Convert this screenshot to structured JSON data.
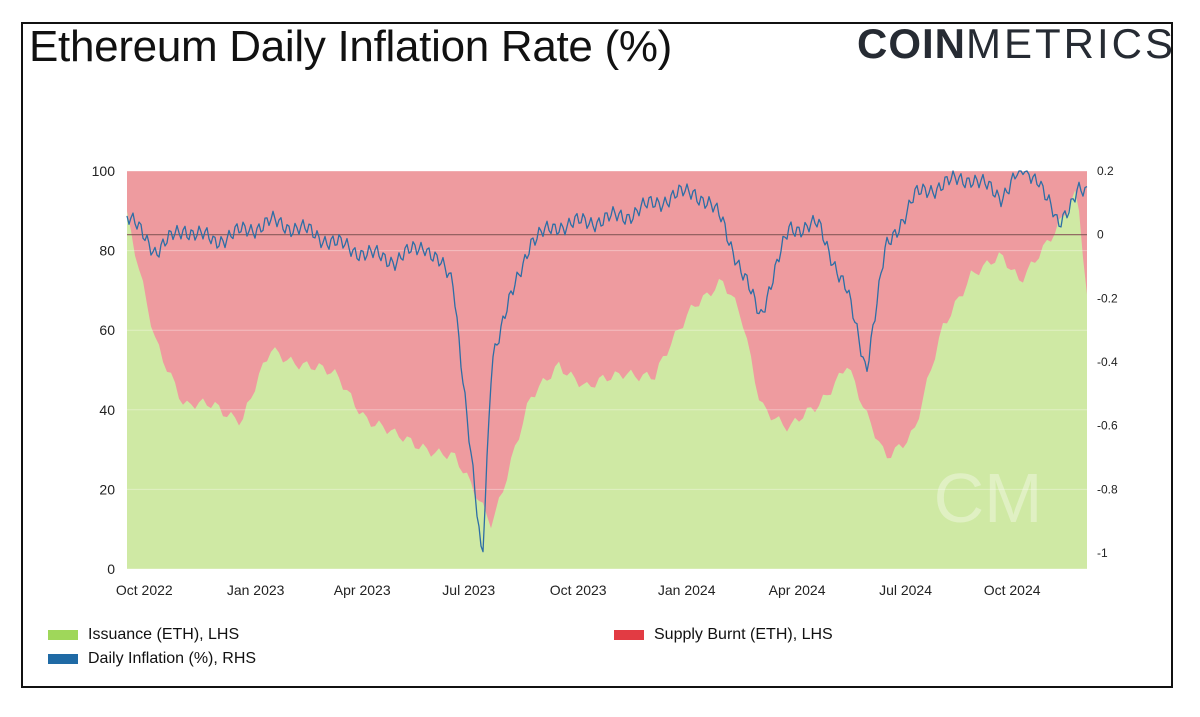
{
  "title": "Ethereum Daily Inflation Rate (%)",
  "logo": {
    "bold": "COIN",
    "light": "METRICS"
  },
  "colors": {
    "issuance": "#cfe9a4",
    "burnt": "#ee9b9f",
    "inflation": "#2d6ea6",
    "zero_line": "#8a5a5a",
    "legend_issuance": "#9fd75a",
    "legend_burnt": "#e23b43",
    "legend_inflation": "#1f6aa5"
  },
  "legend": {
    "issuance": "Issuance (ETH), LHS",
    "burnt": "Supply Burnt (ETH), LHS",
    "inflation": "Daily Inflation (%), RHS"
  },
  "watermark": "CM",
  "chart_data": {
    "type": "area",
    "title": "Ethereum Daily Inflation Rate (%)",
    "x_ticks": [
      "Oct 2022",
      "Jan 2023",
      "Apr 2023",
      "Jul 2023",
      "Oct 2023",
      "Jan 2024",
      "Apr 2024",
      "Jul 2024",
      "Oct 2024"
    ],
    "y_left": {
      "ylim": [
        0,
        100
      ],
      "ticks": [
        0,
        20,
        40,
        60,
        80,
        100
      ]
    },
    "y_right": {
      "ylim": [
        -1.05,
        0.2
      ],
      "ticks": [
        "-1",
        "-0.8",
        "-0.6",
        "-0.4",
        "-0.2",
        "0",
        "0.2"
      ]
    },
    "series": [
      {
        "name": "Issuance (ETH), LHS",
        "axis": "left",
        "kind": "stacked-area-bottom",
        "x": [
          0,
          0.03,
          0.06,
          0.09,
          0.12,
          0.15,
          0.18,
          0.22,
          0.25,
          0.28,
          0.31,
          0.34,
          0.38,
          0.42,
          0.45,
          0.48,
          0.52,
          0.55,
          0.59,
          0.62,
          0.64,
          0.66,
          0.69,
          0.72,
          0.75,
          0.77,
          0.79,
          0.82,
          0.85,
          0.88,
          0.91,
          0.93,
          0.95,
          0.97,
          0.99,
          1.0
        ],
        "values": [
          88,
          58,
          40,
          42,
          37,
          55,
          52,
          48,
          38,
          33,
          31,
          28,
          12,
          42,
          52,
          45,
          50,
          48,
          67,
          72,
          63,
          42,
          35,
          41,
          52,
          38,
          28,
          35,
          60,
          75,
          78,
          72,
          80,
          86,
          94,
          68
        ]
      },
      {
        "name": "Supply Burnt (ETH), LHS",
        "axis": "left",
        "kind": "stacked-area-top",
        "values_note": "fills from issuance to 100"
      },
      {
        "name": "Daily Inflation (%), RHS",
        "axis": "right",
        "kind": "line",
        "x": [
          0,
          0.03,
          0.06,
          0.09,
          0.12,
          0.15,
          0.18,
          0.22,
          0.25,
          0.28,
          0.31,
          0.34,
          0.37,
          0.38,
          0.42,
          0.45,
          0.48,
          0.52,
          0.55,
          0.59,
          0.62,
          0.64,
          0.66,
          0.69,
          0.72,
          0.75,
          0.77,
          0.79,
          0.82,
          0.85,
          0.88,
          0.91,
          0.93,
          0.95,
          0.97,
          0.99,
          1.0
        ],
        "values": [
          0.06,
          -0.05,
          0.02,
          -0.02,
          0.01,
          0.04,
          0.02,
          -0.03,
          -0.06,
          -0.08,
          -0.03,
          -0.15,
          -1.04,
          -0.38,
          -0.02,
          0.03,
          0.04,
          0.06,
          0.1,
          0.14,
          0.05,
          -0.12,
          -0.25,
          0.02,
          0.03,
          -0.18,
          -0.42,
          -0.05,
          0.12,
          0.16,
          0.18,
          0.12,
          0.2,
          0.18,
          0.02,
          0.15,
          0.12
        ]
      }
    ]
  }
}
